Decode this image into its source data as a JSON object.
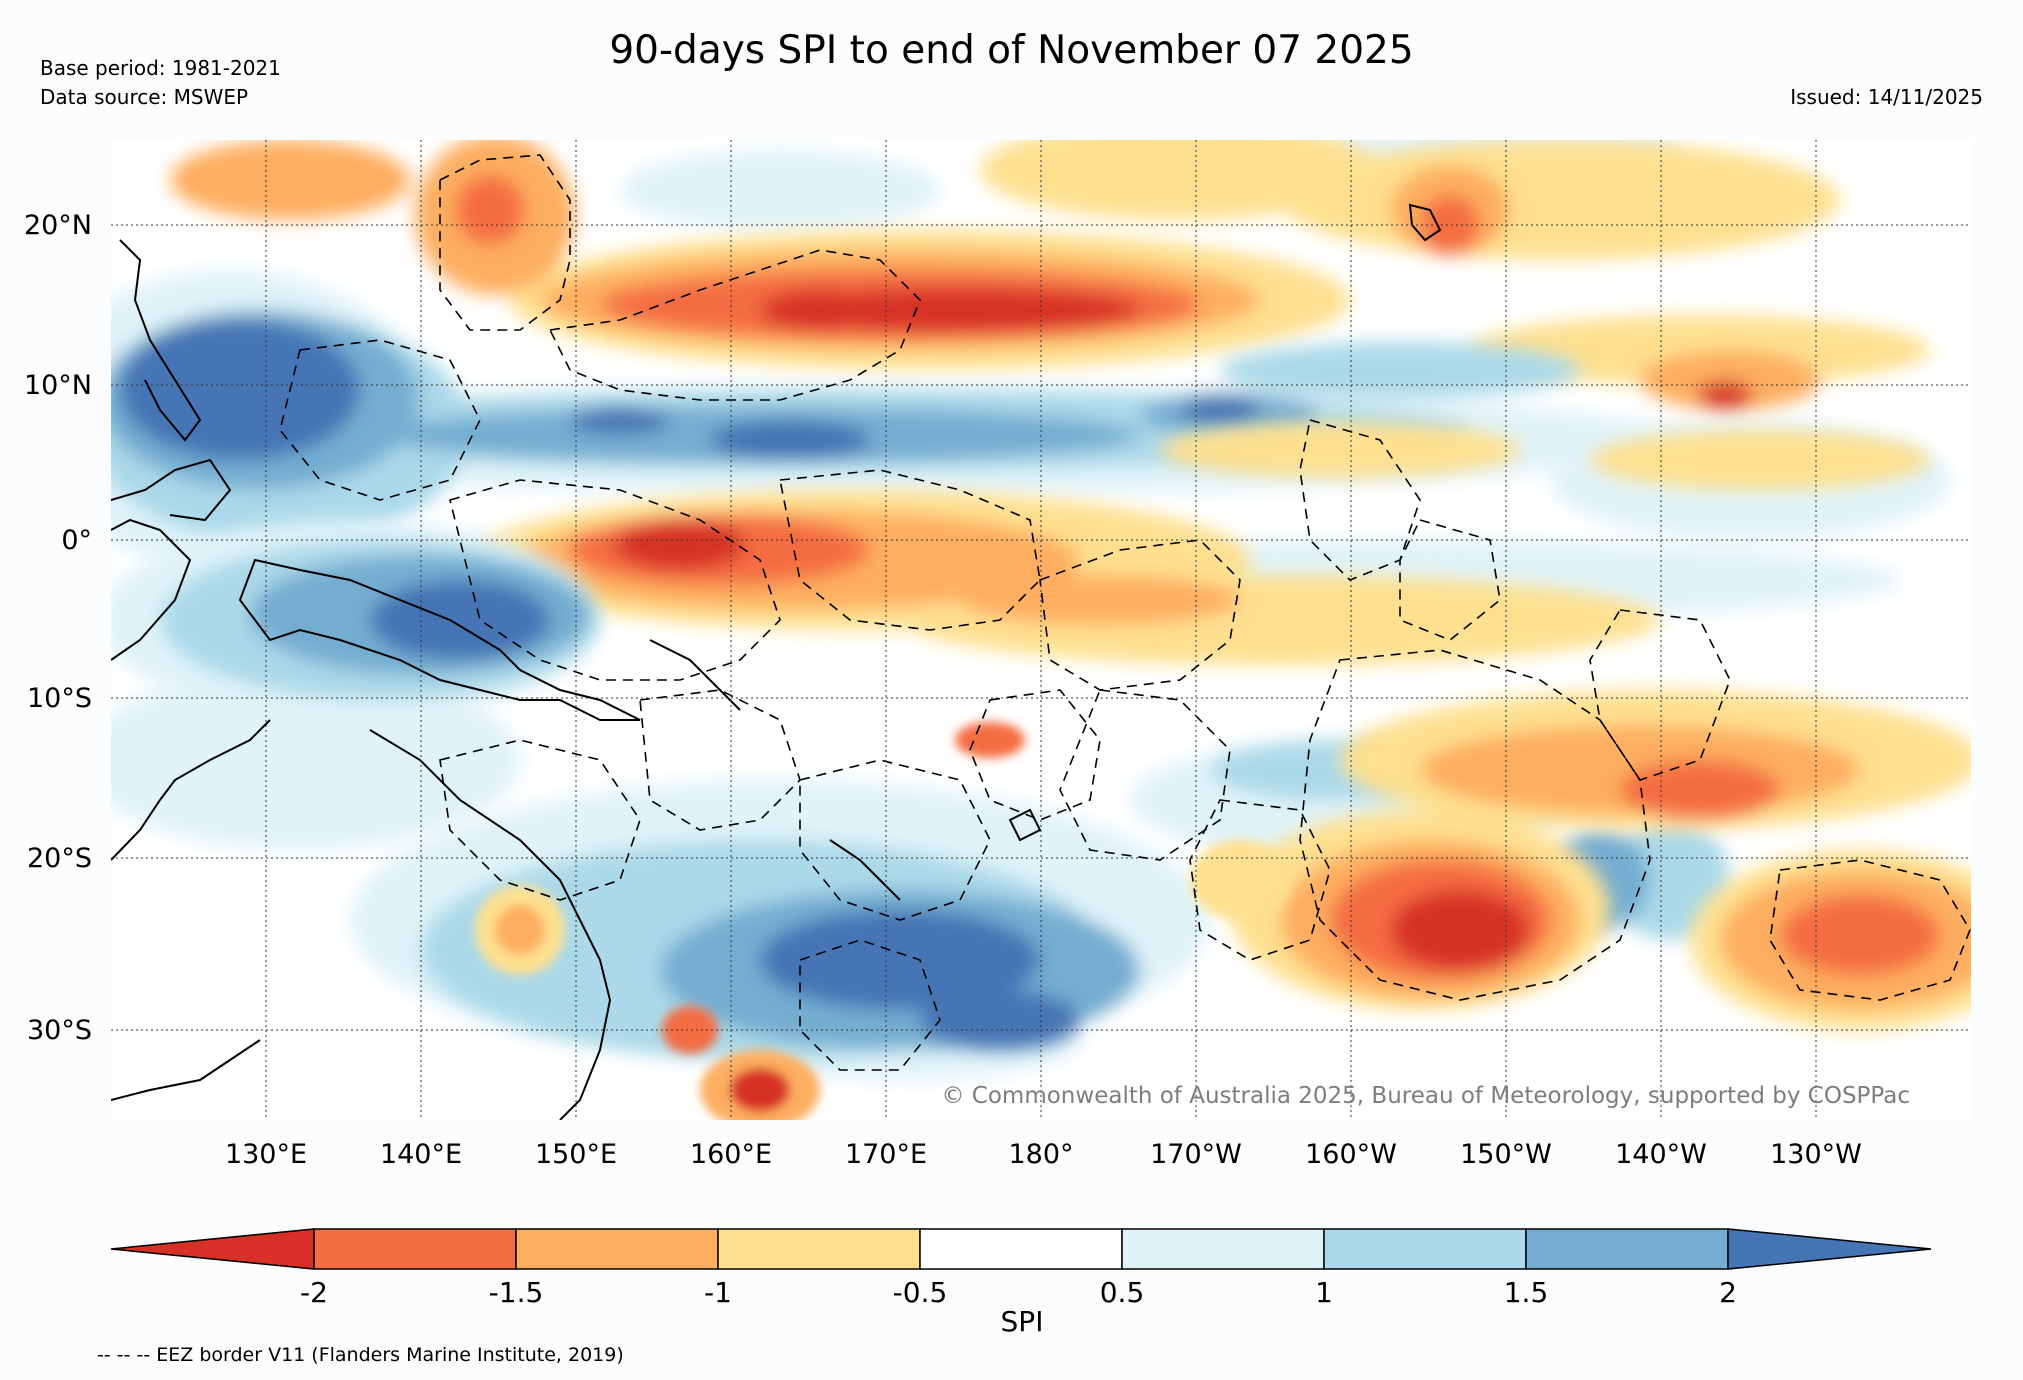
{
  "header": {
    "title": "90-days SPI to end of November 07 2025",
    "base_period": "Base period: 1981-2021",
    "data_source": "Data source: MSWEP",
    "issued": "Issued: 14/11/2025"
  },
  "map": {
    "lat_labels": [
      "20°N",
      "10°N",
      "0°",
      "10°S",
      "20°S",
      "30°S"
    ],
    "lon_labels": [
      "130°E",
      "140°E",
      "150°E",
      "160°E",
      "170°E",
      "180°",
      "170°W",
      "160°W",
      "150°W",
      "140°W",
      "130°W"
    ],
    "copyright": "© Commonwealth of Australia 2025, Bureau of Meteorology, supported by COSPPac",
    "regions": [
      {
        "name": "dry-band-north-pacific",
        "spi": -1.6
      },
      {
        "name": "wet-band-itcz",
        "spi": 1.8
      },
      {
        "name": "dry-band-equatorial",
        "spi": -1.6
      },
      {
        "name": "wet-png-solomons",
        "spi": 1.7
      },
      {
        "name": "wet-tasman-fiji",
        "spi": 1.9
      },
      {
        "name": "dry-southeast-french-polynesia",
        "spi": -1.6
      }
    ]
  },
  "colorbar": {
    "label": "SPI",
    "ticks": [
      "-2",
      "-1.5",
      "-1",
      "-0.5",
      "0.5",
      "1",
      "1.5",
      "2"
    ],
    "colors": [
      "#d73027",
      "#f46d43",
      "#fdae61",
      "#fee090",
      "#ffffff",
      "#e0f3f8",
      "#abd9e9",
      "#74add1",
      "#4575b4"
    ]
  },
  "footer": {
    "eez_note": "-- -- -- EEZ border V11 (Flanders Marine Institute, 2019)"
  }
}
